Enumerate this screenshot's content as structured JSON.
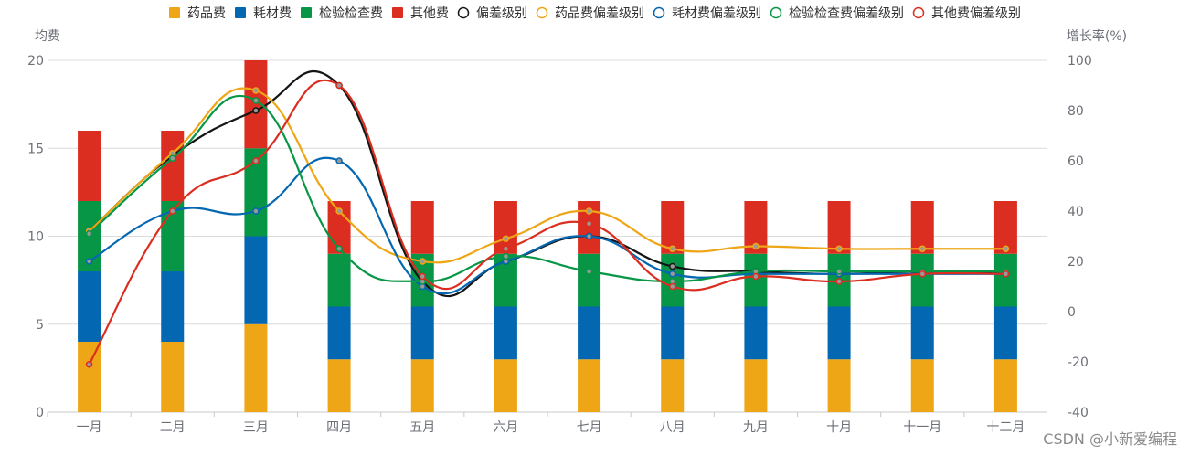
{
  "watermark": "CSDN @小新爱编程",
  "chart_data": {
    "type": "bar",
    "categories": [
      "一月",
      "二月",
      "三月",
      "四月",
      "五月",
      "六月",
      "七月",
      "八月",
      "九月",
      "十月",
      "十一月",
      "十二月"
    ],
    "y_left": {
      "name": "均费",
      "min": 0,
      "max": 20,
      "ticks": [
        0,
        5,
        10,
        15,
        20
      ]
    },
    "y_right": {
      "name": "增长率(%)",
      "min": -40,
      "max": 100,
      "ticks": [
        -40,
        -20,
        0,
        20,
        40,
        60,
        80,
        100
      ]
    },
    "grid": true,
    "legend_position": "top-center",
    "bar_series": [
      {
        "name": "药品费",
        "color": "#eea616",
        "values": [
          4,
          4,
          5,
          3,
          3,
          3,
          3,
          3,
          3,
          3,
          3,
          3
        ]
      },
      {
        "name": "耗材费",
        "color": "#0467b1",
        "values": [
          4,
          4,
          5,
          3,
          3,
          3,
          3,
          3,
          3,
          3,
          3,
          3
        ]
      },
      {
        "name": "检验检查费",
        "color": "#079645",
        "values": [
          4,
          4,
          5,
          3,
          3,
          3,
          3,
          3,
          3,
          3,
          3,
          3
        ]
      },
      {
        "name": "其他费",
        "color": "#db2e20",
        "values": [
          4,
          4,
          5,
          3,
          3,
          3,
          3,
          3,
          3,
          3,
          3,
          3
        ]
      }
    ],
    "line_series": [
      {
        "name": "偏差级别",
        "color": "#151515",
        "values": [
          32,
          62,
          80,
          90,
          12,
          20,
          30,
          18,
          16,
          15,
          16,
          15
        ]
      },
      {
        "name": "药品费偏差级别",
        "color": "#eea616",
        "values": [
          32,
          63,
          88,
          40,
          20,
          29,
          40,
          25,
          26,
          25,
          25,
          25
        ]
      },
      {
        "name": "耗材费偏差级别",
        "color": "#0467b1",
        "values": [
          20,
          40,
          40,
          60,
          10,
          20,
          30,
          15,
          15,
          15,
          15,
          15
        ]
      },
      {
        "name": "检验检查费偏差级别",
        "color": "#079645",
        "values": [
          31,
          61,
          84,
          25,
          12,
          22,
          16,
          12,
          16,
          16,
          16,
          16
        ]
      },
      {
        "name": "其他费偏差级别",
        "color": "#db2e20",
        "values": [
          -21,
          40,
          60,
          90,
          14,
          25,
          35,
          10,
          14,
          12,
          15,
          15
        ]
      }
    ]
  }
}
